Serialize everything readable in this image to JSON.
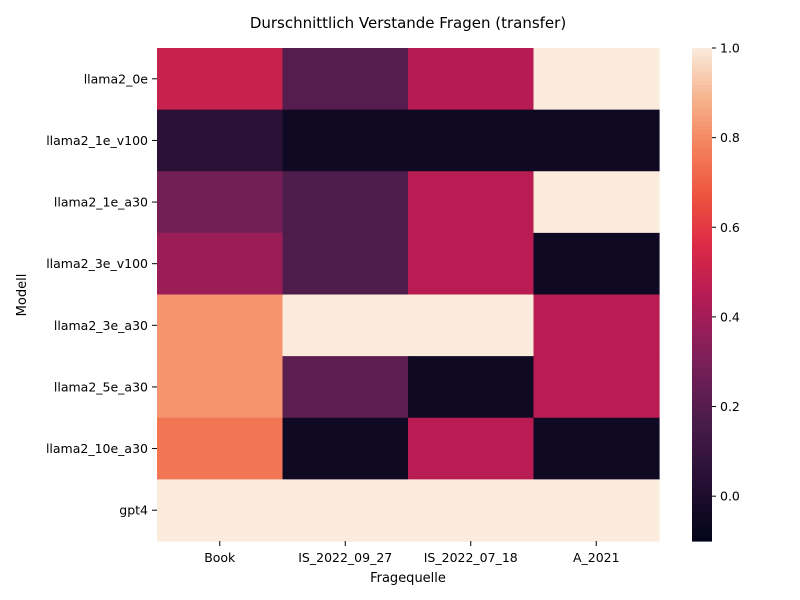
{
  "chart_data": {
    "type": "heatmap",
    "title": "Durschnittlich Verstande Fragen (transfer)",
    "xlabel": "Fragequelle",
    "ylabel": "Modell",
    "columns": [
      "Book",
      "IS_2022_09_27",
      "IS_2022_07_18",
      "A_2021"
    ],
    "rows": [
      "llama2_0e",
      "llama2_1e_v100",
      "llama2_1e_a30",
      "llama2_3e_v100",
      "llama2_3e_a30",
      "llama2_5e_a30",
      "llama2_10e_a30",
      "gpt4"
    ],
    "values": [
      [
        0.5,
        0.2,
        0.45,
        1.0
      ],
      [
        0.05,
        -0.05,
        -0.05,
        -0.05
      ],
      [
        0.28,
        0.18,
        0.46,
        1.0
      ],
      [
        0.38,
        0.18,
        0.46,
        -0.05
      ],
      [
        0.82,
        1.0,
        1.0,
        0.46
      ],
      [
        0.82,
        0.22,
        -0.05,
        0.46
      ],
      [
        0.75,
        -0.05,
        0.46,
        -0.05
      ],
      [
        1.0,
        1.0,
        1.0,
        1.0
      ]
    ],
    "colorbar": {
      "vmin": -0.1,
      "vmax": 1.0,
      "ticks": [
        "0.0",
        "0.2",
        "0.4",
        "0.6",
        "0.8",
        "1.0"
      ],
      "colormap": "rocket"
    }
  }
}
